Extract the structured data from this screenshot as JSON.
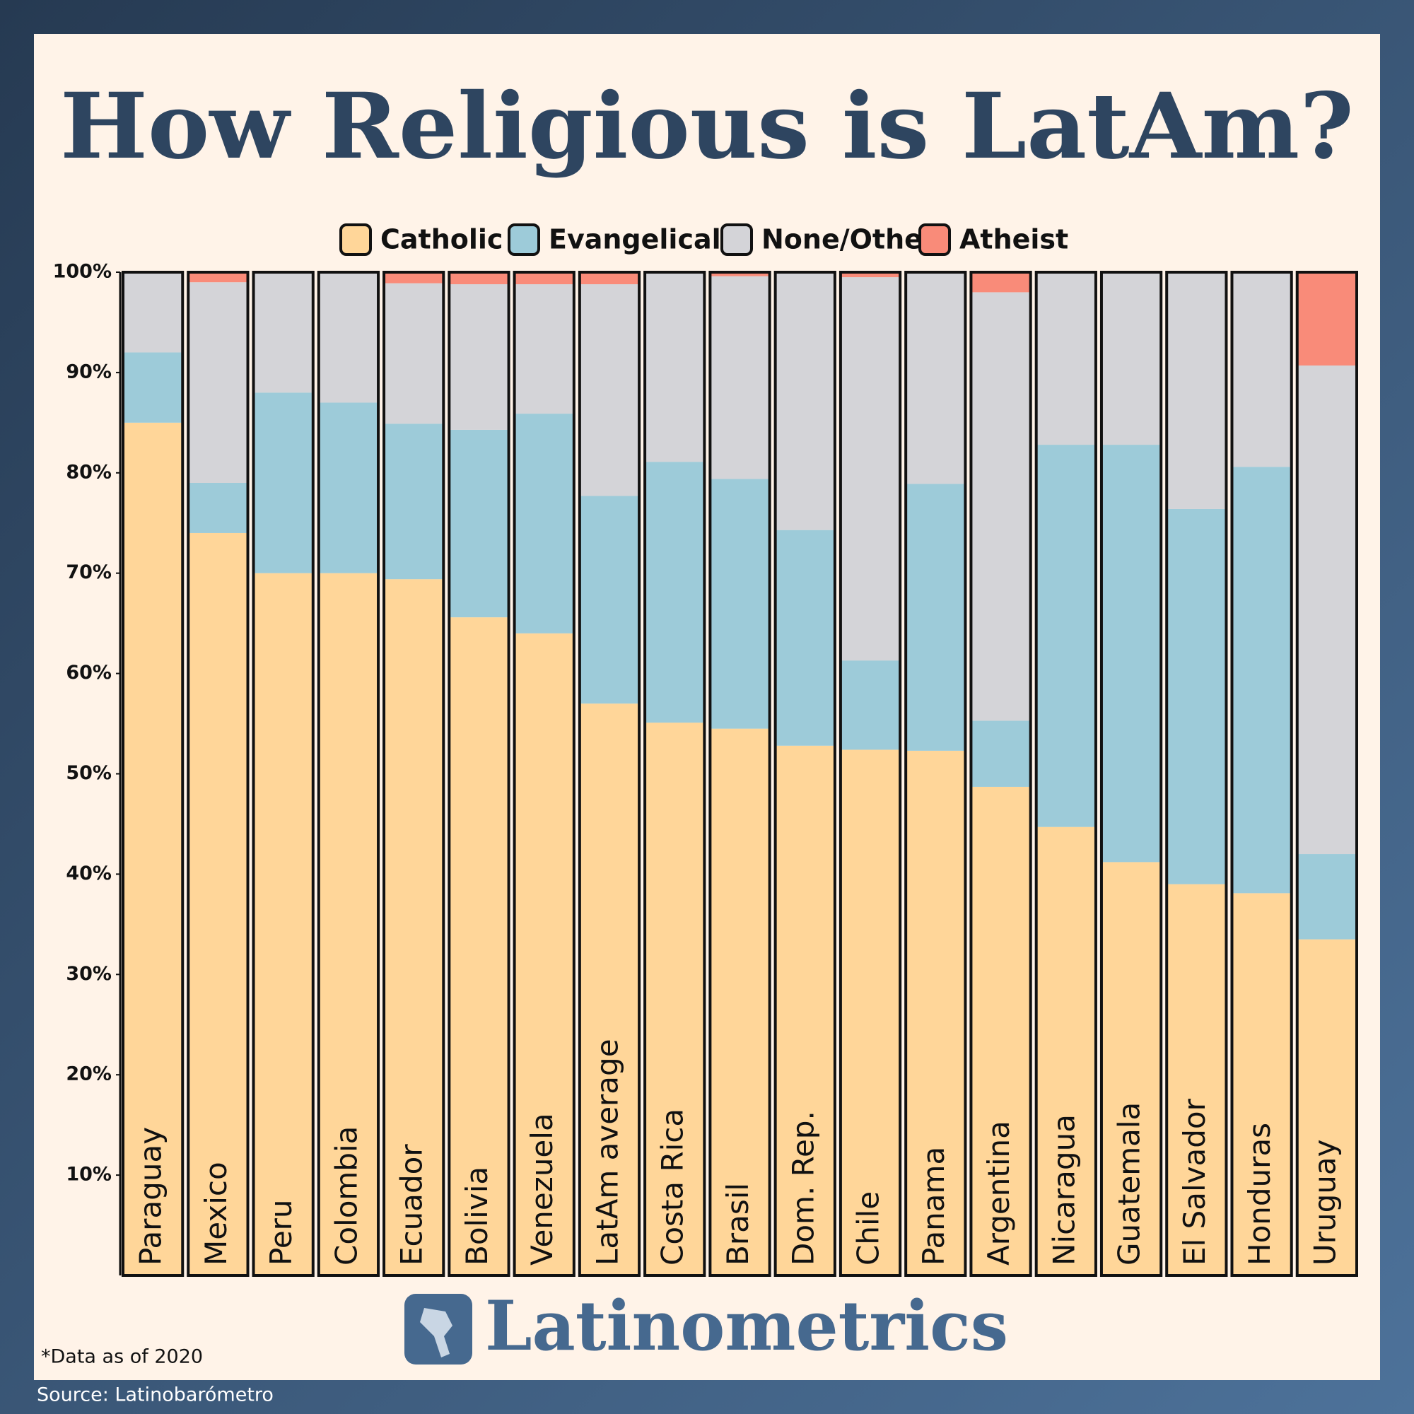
{
  "chart_data": {
    "type": "stacked_bar",
    "title": "How Religious is LatAm?",
    "categories": [
      "Paraguay",
      "Mexico",
      "Peru",
      "Colombia",
      "Ecuador",
      "Bolivia",
      "Venezuela",
      "LatAm average",
      "Costa Rica",
      "Brasil",
      "Dom. Rep.",
      "Chile",
      "Panama",
      "Argentina",
      "Nicaragua",
      "Guatemala",
      "El Salvador",
      "Honduras",
      "Uruguay"
    ],
    "series": [
      {
        "name": "Catholic",
        "color": "#ffd699",
        "values": [
          85,
          74,
          70,
          70,
          69.4,
          65.6,
          64,
          57,
          55.1,
          54.5,
          52.8,
          52.4,
          52.3,
          48.7,
          44.7,
          41.2,
          39,
          38.1,
          33.5
        ]
      },
      {
        "name": "Evangelical",
        "color": "#9dcbd9",
        "values": [
          7,
          5,
          18,
          17,
          15.5,
          18.7,
          21.9,
          20.7,
          26,
          24.9,
          21.5,
          8.9,
          26.6,
          6.6,
          38.1,
          41.6,
          37.4,
          42.5,
          8.5
        ]
      },
      {
        "name": "None/Other",
        "color": "#d4d4d8",
        "values": [
          8,
          20,
          12,
          13,
          14,
          14.5,
          12.9,
          21.1,
          18.9,
          20.2,
          25.7,
          38.2,
          21.1,
          42.7,
          17.2,
          17.2,
          23.6,
          19.4,
          48.7
        ]
      },
      {
        "name": "Atheist",
        "color": "#f98b79",
        "values": [
          0,
          1,
          0,
          0,
          1.1,
          1.2,
          1.2,
          1.2,
          0,
          0.4,
          0,
          0.5,
          0,
          2,
          0,
          0,
          0,
          0,
          9.3
        ]
      }
    ],
    "ylim": [
      0,
      100
    ],
    "yticks": [
      {
        "value": 10,
        "label": "10%"
      },
      {
        "value": 20,
        "label": "20%"
      },
      {
        "value": 30,
        "label": "30%"
      },
      {
        "value": 40,
        "label": "40%"
      },
      {
        "value": 50,
        "label": "50%"
      },
      {
        "value": 60,
        "label": "60%"
      },
      {
        "value": 70,
        "label": "70%"
      },
      {
        "value": 80,
        "label": "80%"
      },
      {
        "value": 90,
        "label": "90%"
      },
      {
        "value": 100,
        "label": "100%"
      }
    ]
  },
  "brand": "Latinometrics",
  "footnote": "*Data as of 2020",
  "source": "Source: Latinobarómetro"
}
